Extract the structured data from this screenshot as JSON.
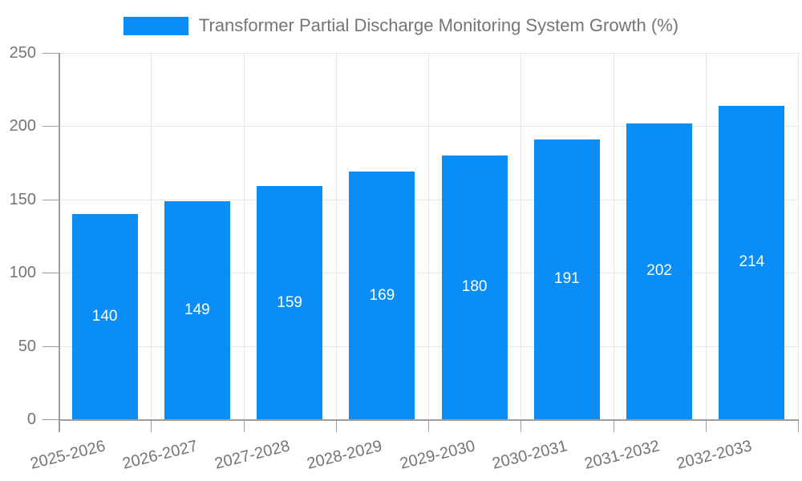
{
  "chart_data": {
    "type": "bar",
    "title": "Transformer Partial Discharge Monitoring System Growth (%)",
    "legend_position": "top",
    "categories": [
      "2025-2026",
      "2026-2027",
      "2027-2028",
      "2028-2029",
      "2029-2030",
      "2030-2031",
      "2031-2032",
      "2032-2033"
    ],
    "series": [
      {
        "name": "Transformer Partial Discharge Monitoring System Growth (%)",
        "values": [
          140,
          149,
          159,
          169,
          180,
          191,
          202,
          214
        ]
      }
    ],
    "value_labels": [
      "140",
      "149",
      "159",
      "169",
      "180",
      "191",
      "202",
      "214"
    ],
    "xlabel": "",
    "ylabel": "",
    "ylim": [
      0,
      250
    ],
    "ytick_step": 50,
    "yticks": [
      0,
      50,
      100,
      150,
      200,
      250
    ],
    "ytick_labels": [
      "0",
      "50",
      "100",
      "150",
      "200",
      "250"
    ],
    "grid": "on",
    "x_label_rotation_deg": -14,
    "colors": {
      "bar": "#0b8df8",
      "value_label": "#ffffff",
      "axis_text": "#757575",
      "axis_line": "#9e9e9e",
      "gridline": "#e6e6e6",
      "background": "#ffffff"
    }
  }
}
